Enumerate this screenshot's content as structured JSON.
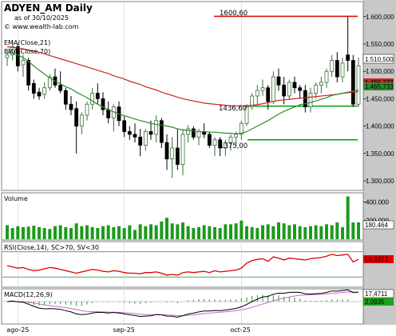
{
  "header": {
    "symbol": "ADYEN_AM Daily",
    "asof": "as of 30/10/2025",
    "source": "© www.wealth-lab.com"
  },
  "legend": {
    "ema21": "EMA(Close,21)",
    "ema70": "EMA(Close,70)"
  },
  "panes": {
    "volume": "Volume",
    "rsi": "RSI(Close,14), SC>70, SV<30",
    "macd": "MACD(12,26,9)"
  },
  "annotations": {
    "high_level": "1600,60",
    "mid_level": "1436,60",
    "low_level": "1375,00"
  },
  "right_labels": {
    "last_close": "1.510,500",
    "ema_value": "1.465,733",
    "ema_value2": "1.486,733",
    "volume_last": "180.464",
    "rsi_last": "58,3372",
    "macd_last": "17,4711",
    "signal_last": "2,0935"
  },
  "colors": {
    "bull": "#3a6e3a",
    "bear": "#000000",
    "ema21": "#2e8b2e",
    "ema70": "#cc2222",
    "resistance": "#dd0000",
    "support": "#00a000",
    "volume": "#1c9a1c",
    "rsi_line": "#dd0000",
    "rsi_band": "#1a8a1a",
    "axis_bg": "#c8c8c8",
    "macd_line": "#000000",
    "signal_line": "#cc66cc"
  },
  "chart_data": {
    "type": "candlestick",
    "price_axis": {
      "ticks": [
        "1.600,000",
        "1.550,000",
        "1.500,000",
        "1.450,000",
        "1.400,000",
        "1.350,000",
        "1.300,000"
      ],
      "tick_values": [
        1600,
        1550,
        1500,
        1450,
        1400,
        1350,
        1300
      ],
      "ylim": [
        1284,
        1626
      ]
    },
    "volume_axis": {
      "ticks": [
        "400.000",
        "200.000"
      ],
      "tick_values": [
        400000,
        200000
      ],
      "ylim": [
        0,
        490000
      ]
    },
    "rsi_axis": {
      "ticks": [
        "70",
        "30"
      ],
      "tick_values": [
        70,
        30
      ],
      "ylim": [
        15,
        85
      ]
    },
    "macd_axis": {
      "ticks": [],
      "ylim": [
        -45,
        25
      ]
    },
    "x_labels": [
      {
        "label": "ago-25",
        "index": 2
      },
      {
        "label": "sep-25",
        "index": 22
      },
      {
        "label": "oct-25",
        "index": 44
      }
    ],
    "levels": {
      "high": 1600.6,
      "mid": 1436.6,
      "low": 1375
    },
    "ohlc": [
      [
        1525,
        1540,
        1510,
        1530
      ],
      [
        1530,
        1555,
        1520,
        1545
      ],
      [
        1545,
        1550,
        1500,
        1510
      ],
      [
        1512,
        1530,
        1490,
        1520
      ],
      [
        1520,
        1525,
        1465,
        1475
      ],
      [
        1478,
        1485,
        1450,
        1460
      ],
      [
        1462,
        1470,
        1448,
        1455
      ],
      [
        1458,
        1480,
        1450,
        1470
      ],
      [
        1470,
        1495,
        1465,
        1490
      ],
      [
        1490,
        1505,
        1470,
        1475
      ],
      [
        1475,
        1500,
        1460,
        1465
      ],
      [
        1465,
        1470,
        1430,
        1440
      ],
      [
        1440,
        1455,
        1420,
        1430
      ],
      [
        1432,
        1445,
        1350,
        1400
      ],
      [
        1400,
        1425,
        1385,
        1420
      ],
      [
        1420,
        1445,
        1410,
        1440
      ],
      [
        1440,
        1470,
        1430,
        1460
      ],
      [
        1460,
        1478,
        1440,
        1450
      ],
      [
        1450,
        1462,
        1420,
        1430
      ],
      [
        1430,
        1445,
        1405,
        1415
      ],
      [
        1415,
        1440,
        1390,
        1435
      ],
      [
        1435,
        1445,
        1400,
        1410
      ],
      [
        1410,
        1418,
        1380,
        1390
      ],
      [
        1390,
        1400,
        1375,
        1385
      ],
      [
        1385,
        1405,
        1370,
        1380
      ],
      [
        1380,
        1395,
        1345,
        1365
      ],
      [
        1365,
        1395,
        1355,
        1390
      ],
      [
        1390,
        1410,
        1375,
        1385
      ],
      [
        1385,
        1420,
        1370,
        1410
      ],
      [
        1410,
        1415,
        1360,
        1370
      ],
      [
        1370,
        1385,
        1320,
        1340
      ],
      [
        1340,
        1380,
        1305,
        1360
      ],
      [
        1360,
        1395,
        1320,
        1330
      ],
      [
        1330,
        1395,
        1310,
        1385
      ],
      [
        1385,
        1402,
        1370,
        1395
      ],
      [
        1395,
        1400,
        1375,
        1380
      ],
      [
        1380,
        1395,
        1365,
        1390
      ],
      [
        1390,
        1405,
        1378,
        1385
      ],
      [
        1385,
        1390,
        1360,
        1365
      ],
      [
        1365,
        1380,
        1345,
        1375
      ],
      [
        1375,
        1380,
        1345,
        1360
      ],
      [
        1360,
        1375,
        1345,
        1370
      ],
      [
        1370,
        1385,
        1355,
        1380
      ],
      [
        1380,
        1390,
        1365,
        1385
      ],
      [
        1385,
        1410,
        1375,
        1405
      ],
      [
        1405,
        1440,
        1400,
        1435
      ],
      [
        1435,
        1460,
        1430,
        1455
      ],
      [
        1455,
        1475,
        1440,
        1465
      ],
      [
        1465,
        1485,
        1455,
        1470
      ],
      [
        1470,
        1475,
        1430,
        1445
      ],
      [
        1445,
        1500,
        1440,
        1490
      ],
      [
        1490,
        1505,
        1465,
        1475
      ],
      [
        1475,
        1490,
        1440,
        1455
      ],
      [
        1455,
        1485,
        1450,
        1480
      ],
      [
        1480,
        1490,
        1460,
        1470
      ],
      [
        1470,
        1475,
        1450,
        1465
      ],
      [
        1465,
        1475,
        1425,
        1435
      ],
      [
        1435,
        1470,
        1425,
        1460
      ],
      [
        1460,
        1480,
        1450,
        1475
      ],
      [
        1475,
        1490,
        1460,
        1480
      ],
      [
        1480,
        1505,
        1470,
        1500
      ],
      [
        1500,
        1530,
        1490,
        1520
      ],
      [
        1520,
        1535,
        1480,
        1490
      ],
      [
        1490,
        1525,
        1480,
        1515
      ],
      [
        1530,
        1600,
        1500,
        1520
      ],
      [
        1520,
        1530,
        1435,
        1440
      ],
      [
        1440,
        1525,
        1435,
        1510
      ]
    ],
    "ema21": [
      1535,
      1533,
      1530,
      1525,
      1518,
      1510,
      1502,
      1495,
      1488,
      1482,
      1477,
      1472,
      1468,
      1462,
      1457,
      1452,
      1446,
      1440,
      1435,
      1430,
      1426,
      1422,
      1419,
      1416,
      1413,
      1410,
      1408,
      1405,
      1403,
      1402,
      1400,
      1398,
      1395,
      1393,
      1392,
      1391,
      1390,
      1390,
      1389,
      1389,
      1388,
      1387,
      1387,
      1386,
      1387,
      1390,
      1395,
      1400,
      1405,
      1410,
      1416,
      1422,
      1427,
      1431,
      1435,
      1439,
      1441,
      1443,
      1446,
      1449,
      1452,
      1456,
      1458,
      1460,
      1462,
      1464,
      1466
    ],
    "ema70": [
      1545,
      1544,
      1543,
      1541,
      1539,
      1537,
      1535,
      1532,
      1529,
      1526,
      1523,
      1520,
      1517,
      1514,
      1511,
      1508,
      1505,
      1502,
      1499,
      1496,
      1492,
      1489,
      1486,
      1482,
      1479,
      1476,
      1472,
      1469,
      1466,
      1462,
      1459,
      1456,
      1453,
      1450,
      1448,
      1446,
      1444,
      1442,
      1441,
      1440,
      1439,
      1438,
      1437,
      1437,
      1437,
      1437,
      1438,
      1439,
      1441,
      1443,
      1445,
      1447,
      1448,
      1449,
      1450,
      1451,
      1452,
      1453,
      1454,
      1455,
      1456,
      1457,
      1458,
      1460,
      1461,
      1462,
      1463
    ],
    "volume": [
      150000,
      120000,
      140000,
      130000,
      135000,
      145000,
      130000,
      120000,
      110000,
      140000,
      150000,
      130000,
      120000,
      170000,
      140000,
      150000,
      130000,
      120000,
      140000,
      150000,
      130000,
      140000,
      120000,
      150000,
      100000,
      160000,
      140000,
      160000,
      150000,
      190000,
      230000,
      170000,
      160000,
      180000,
      140000,
      120000,
      130000,
      150000,
      140000,
      130000,
      120000,
      160000,
      160000,
      170000,
      200000,
      140000,
      130000,
      120000,
      150000,
      160000,
      140000,
      180000,
      170000,
      150000,
      160000,
      140000,
      130000,
      140000,
      150000,
      140000,
      160000,
      150000,
      180000,
      130000,
      460000,
      180000,
      180464
    ],
    "rsi": [
      48,
      46,
      44,
      45,
      42,
      40,
      41,
      43,
      45,
      44,
      42,
      40,
      38,
      36,
      38,
      40,
      42,
      41,
      39,
      38,
      40,
      39,
      37,
      36,
      36,
      35,
      37,
      37,
      38,
      36,
      33,
      34,
      33,
      37,
      38,
      37,
      38,
      39,
      37,
      40,
      38,
      39,
      40,
      41,
      44,
      52,
      56,
      58,
      59,
      55,
      62,
      60,
      57,
      60,
      59,
      58,
      57,
      59,
      60,
      61,
      63,
      66,
      64,
      65,
      66,
      54,
      58
    ]
  }
}
